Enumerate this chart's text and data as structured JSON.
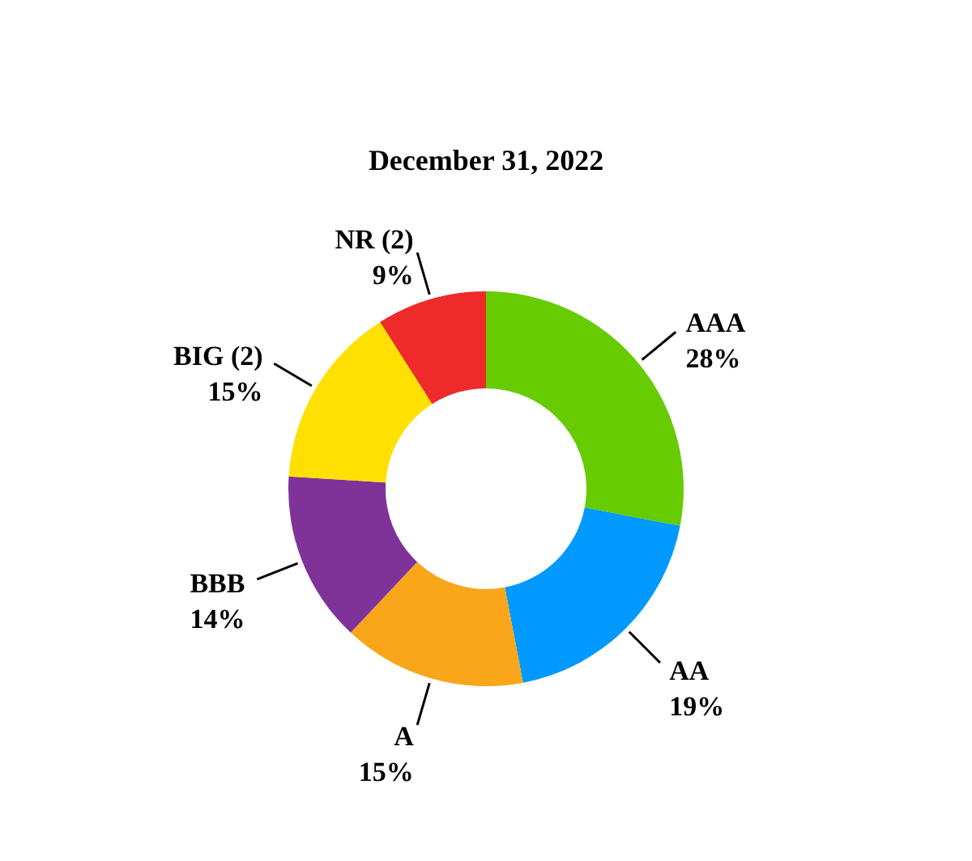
{
  "chart_data": {
    "type": "donut",
    "title": "December 31, 2022",
    "categories": [
      "AAA",
      "AA",
      "A",
      "BBB",
      "BIG (2)",
      "NR (2)"
    ],
    "values": [
      28,
      19,
      15,
      14,
      15,
      9
    ],
    "colors": [
      "#66cc00",
      "#0099ff",
      "#f9a61a",
      "#7f3399",
      "#ffe000",
      "#ee2a2a"
    ],
    "value_labels": [
      "28%",
      "19%",
      "15%",
      "14%",
      "15%",
      "9%"
    ]
  }
}
